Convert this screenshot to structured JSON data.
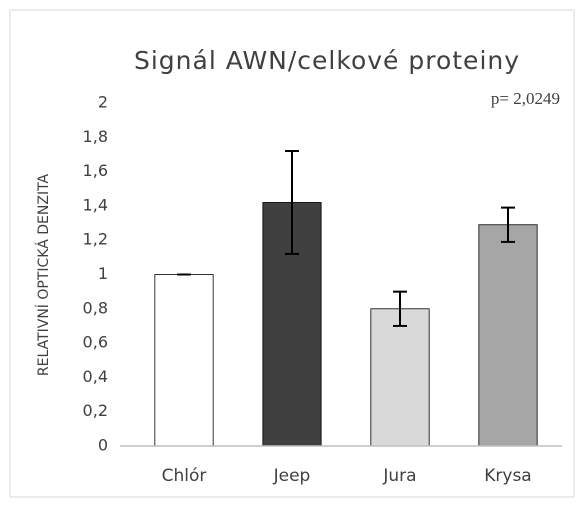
{
  "chart_data": {
    "type": "bar",
    "title": "Signál AWN/celkové proteiny",
    "annotation": "p= 2,0249",
    "y_label": "RELATIVNÍ OPTICKÁ DENZITA",
    "categories": [
      "Chlór",
      "Jeep",
      "Jura",
      "Krysa"
    ],
    "values": [
      1.0,
      1.42,
      0.8,
      1.29
    ],
    "errors": [
      0.0,
      0.3,
      0.1,
      0.1
    ],
    "colors": [
      "#ffffff",
      "#404040",
      "#d9d9d9",
      "#a6a6a6"
    ],
    "ylim": [
      0,
      2
    ],
    "yticks": [
      0,
      {
        "value": 0.2,
        "label": "0,2"
      },
      {
        "value": 0.4,
        "label": "0,4"
      },
      {
        "value": 0.6,
        "label": "0,6"
      },
      {
        "value": 0.8,
        "label": "0,8"
      },
      1,
      {
        "value": 1.2,
        "label": "1,2"
      },
      {
        "value": 1.4,
        "label": "1,4"
      },
      {
        "value": 1.6,
        "label": "1,6"
      },
      {
        "value": 1.8,
        "label": "1,8"
      },
      2
    ],
    "grid": false
  }
}
